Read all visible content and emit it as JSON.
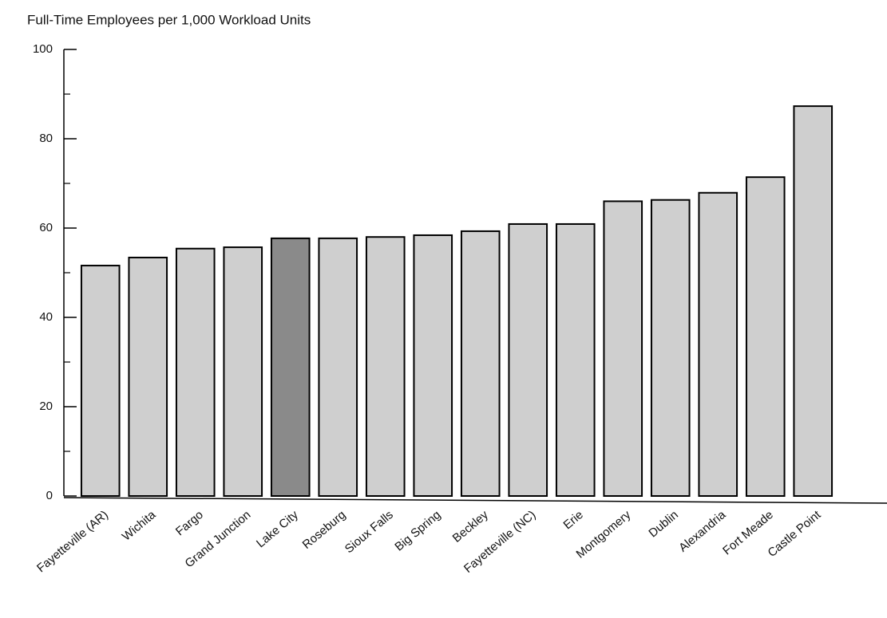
{
  "chart_data": {
    "type": "bar",
    "title": "Full-Time Employees per 1,000 Workload Units",
    "categories": [
      "Fayetteville (AR)",
      "Wichita",
      "Fargo",
      "Grand Junction",
      "Lake City",
      "Roseburg",
      "Sioux Falls",
      "Big Spring",
      "Beckley",
      "Fayetteville (NC)",
      "Erie",
      "Montgomery",
      "Dublin",
      "Alexandria",
      "Fort Meade",
      "Castle Point"
    ],
    "values": [
      51.6,
      53.4,
      55.4,
      55.7,
      57.7,
      57.7,
      58.0,
      58.4,
      59.3,
      60.9,
      60.9,
      66.0,
      66.3,
      67.9,
      71.4,
      87.3
    ],
    "colors": [
      "#cfcfcf",
      "#cfcfcf",
      "#cfcfcf",
      "#cfcfcf",
      "#8a8a8a",
      "#cfcfcf",
      "#cfcfcf",
      "#cfcfcf",
      "#cfcfcf",
      "#cfcfcf",
      "#cfcfcf",
      "#cfcfcf",
      "#cfcfcf",
      "#cfcfcf",
      "#cfcfcf",
      "#cfcfcf"
    ],
    "ylim": [
      0,
      100
    ],
    "yticks": [
      0,
      20,
      40,
      60,
      80,
      100
    ],
    "minor_yticks": [
      10,
      30,
      50,
      70,
      90
    ]
  }
}
